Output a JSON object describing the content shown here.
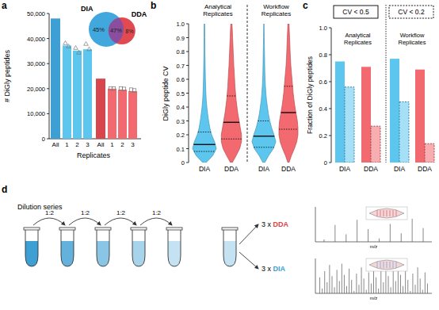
{
  "chart_data": [
    {
      "panel": "a",
      "type": "bar",
      "ylabel": "# DiGly peptides",
      "xlabel": "Replicates",
      "categories": [
        "All",
        "1",
        "2",
        "3"
      ],
      "ylim": [
        0,
        50000
      ],
      "yticks": [
        0,
        {
          "value": 10000,
          "label": "10,000"
        },
        {
          "value": 20000,
          "label": "20,000"
        },
        {
          "value": 30000,
          "label": "30,000"
        },
        {
          "value": 40000,
          "label": "40,000"
        },
        {
          "value": 50000,
          "label": "50,000"
        }
      ],
      "series": [
        {
          "name": "DIA",
          "colors": [
            "#3d9fd3",
            "#5cc6ef",
            "#5cc6ef",
            "#5cc6ef"
          ],
          "marker": "triangle",
          "values": [
            48000,
            37200,
            35200,
            35700
          ],
          "points": [
            [],
            [
              38200,
              36900
            ],
            [
              36300,
              34400
            ],
            [
              37900,
              35800
            ]
          ]
        },
        {
          "name": "DDA",
          "colors": [
            "#d8454c",
            "#f26a6f",
            "#f26a6f",
            "#f26a6f"
          ],
          "marker": "square",
          "values": [
            24000,
            20000,
            19600,
            19000
          ],
          "points": [
            [],
            [
              20100,
              20000
            ],
            [
              20100,
              19900
            ],
            [
              19600,
              19300
            ]
          ]
        }
      ],
      "venn": {
        "values": [
          45,
          47,
          8
        ],
        "value_labels": [
          "45%",
          "47%",
          "8%"
        ],
        "colors": [
          "#41a8de",
          "#8b4d9e",
          "#e24a52"
        ]
      }
    },
    {
      "panel": "b",
      "type": "violin",
      "ylabel": "DiGly peptide CV",
      "groups": [
        "Analytical Replicates",
        "Workflow Replicates"
      ],
      "categories": [
        "DIA",
        "DDA",
        "DIA",
        "DDA"
      ],
      "colors": [
        "#5cc6ef",
        "#f26a6f",
        "#5cc6ef",
        "#f26a6f"
      ],
      "ylim": [
        0,
        1
      ],
      "yticks": [
        0,
        0.1,
        0.2,
        0.3,
        0.4,
        0.5,
        0.6,
        0.7,
        0.8,
        0.9,
        {
          "value": 1,
          "label": "1.0"
        }
      ],
      "cv_grid": [
        0,
        0.05,
        0.1,
        0.15,
        0.2,
        0.25,
        0.3,
        0.35,
        0.4,
        0.45,
        0.5,
        0.55,
        0.6,
        0.65,
        0.7,
        0.75,
        0.8,
        0.85,
        0.9,
        0.95,
        1
      ],
      "violins": [
        {
          "density": [
            0.15,
            0.7,
            1.0,
            0.85,
            0.6,
            0.45,
            0.35,
            0.27,
            0.2,
            0.15,
            0.12,
            0.1,
            0.08,
            0.07,
            0.06,
            0.05,
            0.04,
            0.04,
            0.03,
            0.03,
            0.02
          ],
          "q1": 0.08,
          "median": 0.13,
          "q3": 0.22
        },
        {
          "density": [
            0.08,
            0.4,
            0.7,
            0.85,
            0.85,
            0.75,
            0.65,
            0.55,
            0.47,
            0.4,
            0.35,
            0.3,
            0.27,
            0.24,
            0.2,
            0.18,
            0.15,
            0.13,
            0.1,
            0.08,
            0.05
          ],
          "q1": 0.17,
          "median": 0.29,
          "q3": 0.48
        },
        {
          "density": [
            0.08,
            0.4,
            0.8,
            1.0,
            0.85,
            0.65,
            0.5,
            0.38,
            0.3,
            0.22,
            0.17,
            0.13,
            0.1,
            0.08,
            0.07,
            0.06,
            0.05,
            0.04,
            0.03,
            0.02,
            0.01
          ],
          "q1": 0.11,
          "median": 0.19,
          "q3": 0.3
        },
        {
          "density": [
            0.05,
            0.25,
            0.5,
            0.7,
            0.8,
            0.8,
            0.75,
            0.65,
            0.55,
            0.47,
            0.4,
            0.35,
            0.3,
            0.25,
            0.2,
            0.17,
            0.14,
            0.12,
            0.1,
            0.07,
            0.05
          ],
          "q1": 0.24,
          "median": 0.36,
          "q3": 0.55
        }
      ]
    },
    {
      "panel": "c",
      "type": "bar",
      "ylabel": "Fraction of DiGly peptides",
      "groups": [
        "Analytical Replicates",
        "Workflow Replicates"
      ],
      "categories": [
        "DIA",
        "DDA",
        "DIA",
        "DDA"
      ],
      "colors": [
        "#5cc6ef",
        "#f26a6f",
        "#5cc6ef",
        "#f26a6f"
      ],
      "ylim": [
        0,
        1
      ],
      "yticks": [
        0,
        0.2,
        0.4,
        0.6,
        0.8,
        {
          "value": 1,
          "label": "1.0"
        }
      ],
      "series": [
        {
          "name": "CV < 0.5",
          "line_style": "solid",
          "values": [
            0.75,
            0.71,
            0.77,
            0.69
          ]
        },
        {
          "name": "CV < 0.2",
          "line_style": "dashed",
          "values": [
            0.56,
            0.27,
            0.45,
            0.14
          ]
        }
      ]
    }
  ],
  "diagram": {
    "panel": "d",
    "title": "Dilution series",
    "steps": [
      "1:2",
      "1:2",
      "1:2",
      "1:2"
    ],
    "outputs": [
      {
        "count": "3 x",
        "method": "DDA",
        "color": "#d8454c"
      },
      {
        "count": "3 x",
        "method": "DIA",
        "color": "#3d9fd3"
      }
    ],
    "spectrum_axis": "m/z"
  }
}
